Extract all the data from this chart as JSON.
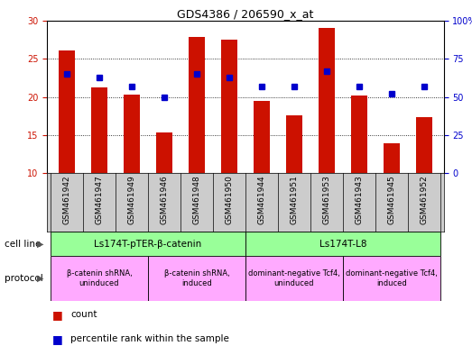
{
  "title": "GDS4386 / 206590_x_at",
  "samples": [
    "GSM461942",
    "GSM461947",
    "GSM461949",
    "GSM461946",
    "GSM461948",
    "GSM461950",
    "GSM461944",
    "GSM461951",
    "GSM461953",
    "GSM461943",
    "GSM461945",
    "GSM461952"
  ],
  "counts": [
    26.1,
    21.2,
    20.3,
    15.3,
    27.9,
    27.5,
    19.5,
    17.6,
    29.0,
    20.2,
    13.9,
    17.3
  ],
  "percentile_ranks": [
    65,
    63,
    57,
    50,
    65,
    63,
    57,
    57,
    67,
    57,
    52,
    57
  ],
  "ylim_left": [
    10,
    30
  ],
  "ylim_right": [
    0,
    100
  ],
  "yticks_left": [
    10,
    15,
    20,
    25,
    30
  ],
  "yticks_right": [
    0,
    25,
    50,
    75,
    100
  ],
  "bar_color": "#cc1100",
  "dot_color": "#0000cc",
  "cell_line_groups": [
    {
      "label": "Ls174T-pTER-β-catenin",
      "start": 0,
      "end": 6,
      "color": "#99ff99"
    },
    {
      "label": "Ls174T-L8",
      "start": 6,
      "end": 12,
      "color": "#99ff99"
    }
  ],
  "protocol_groups": [
    {
      "label": "β-catenin shRNA,\nuninduced",
      "start": 0,
      "end": 3,
      "color": "#ffaaff"
    },
    {
      "label": "β-catenin shRNA,\ninduced",
      "start": 3,
      "end": 6,
      "color": "#ffaaff"
    },
    {
      "label": "dominant-negative Tcf4,\nuninduced",
      "start": 6,
      "end": 9,
      "color": "#ffaaff"
    },
    {
      "label": "dominant-negative Tcf4,\ninduced",
      "start": 9,
      "end": 12,
      "color": "#ffaaff"
    }
  ],
  "cell_line_label": "cell line",
  "protocol_label": "protocol",
  "legend_count_label": "count",
  "legend_percentile_label": "percentile rank within the sample",
  "xlabel_bg_color": "#cccccc",
  "fig_width": 5.23,
  "fig_height": 3.84
}
